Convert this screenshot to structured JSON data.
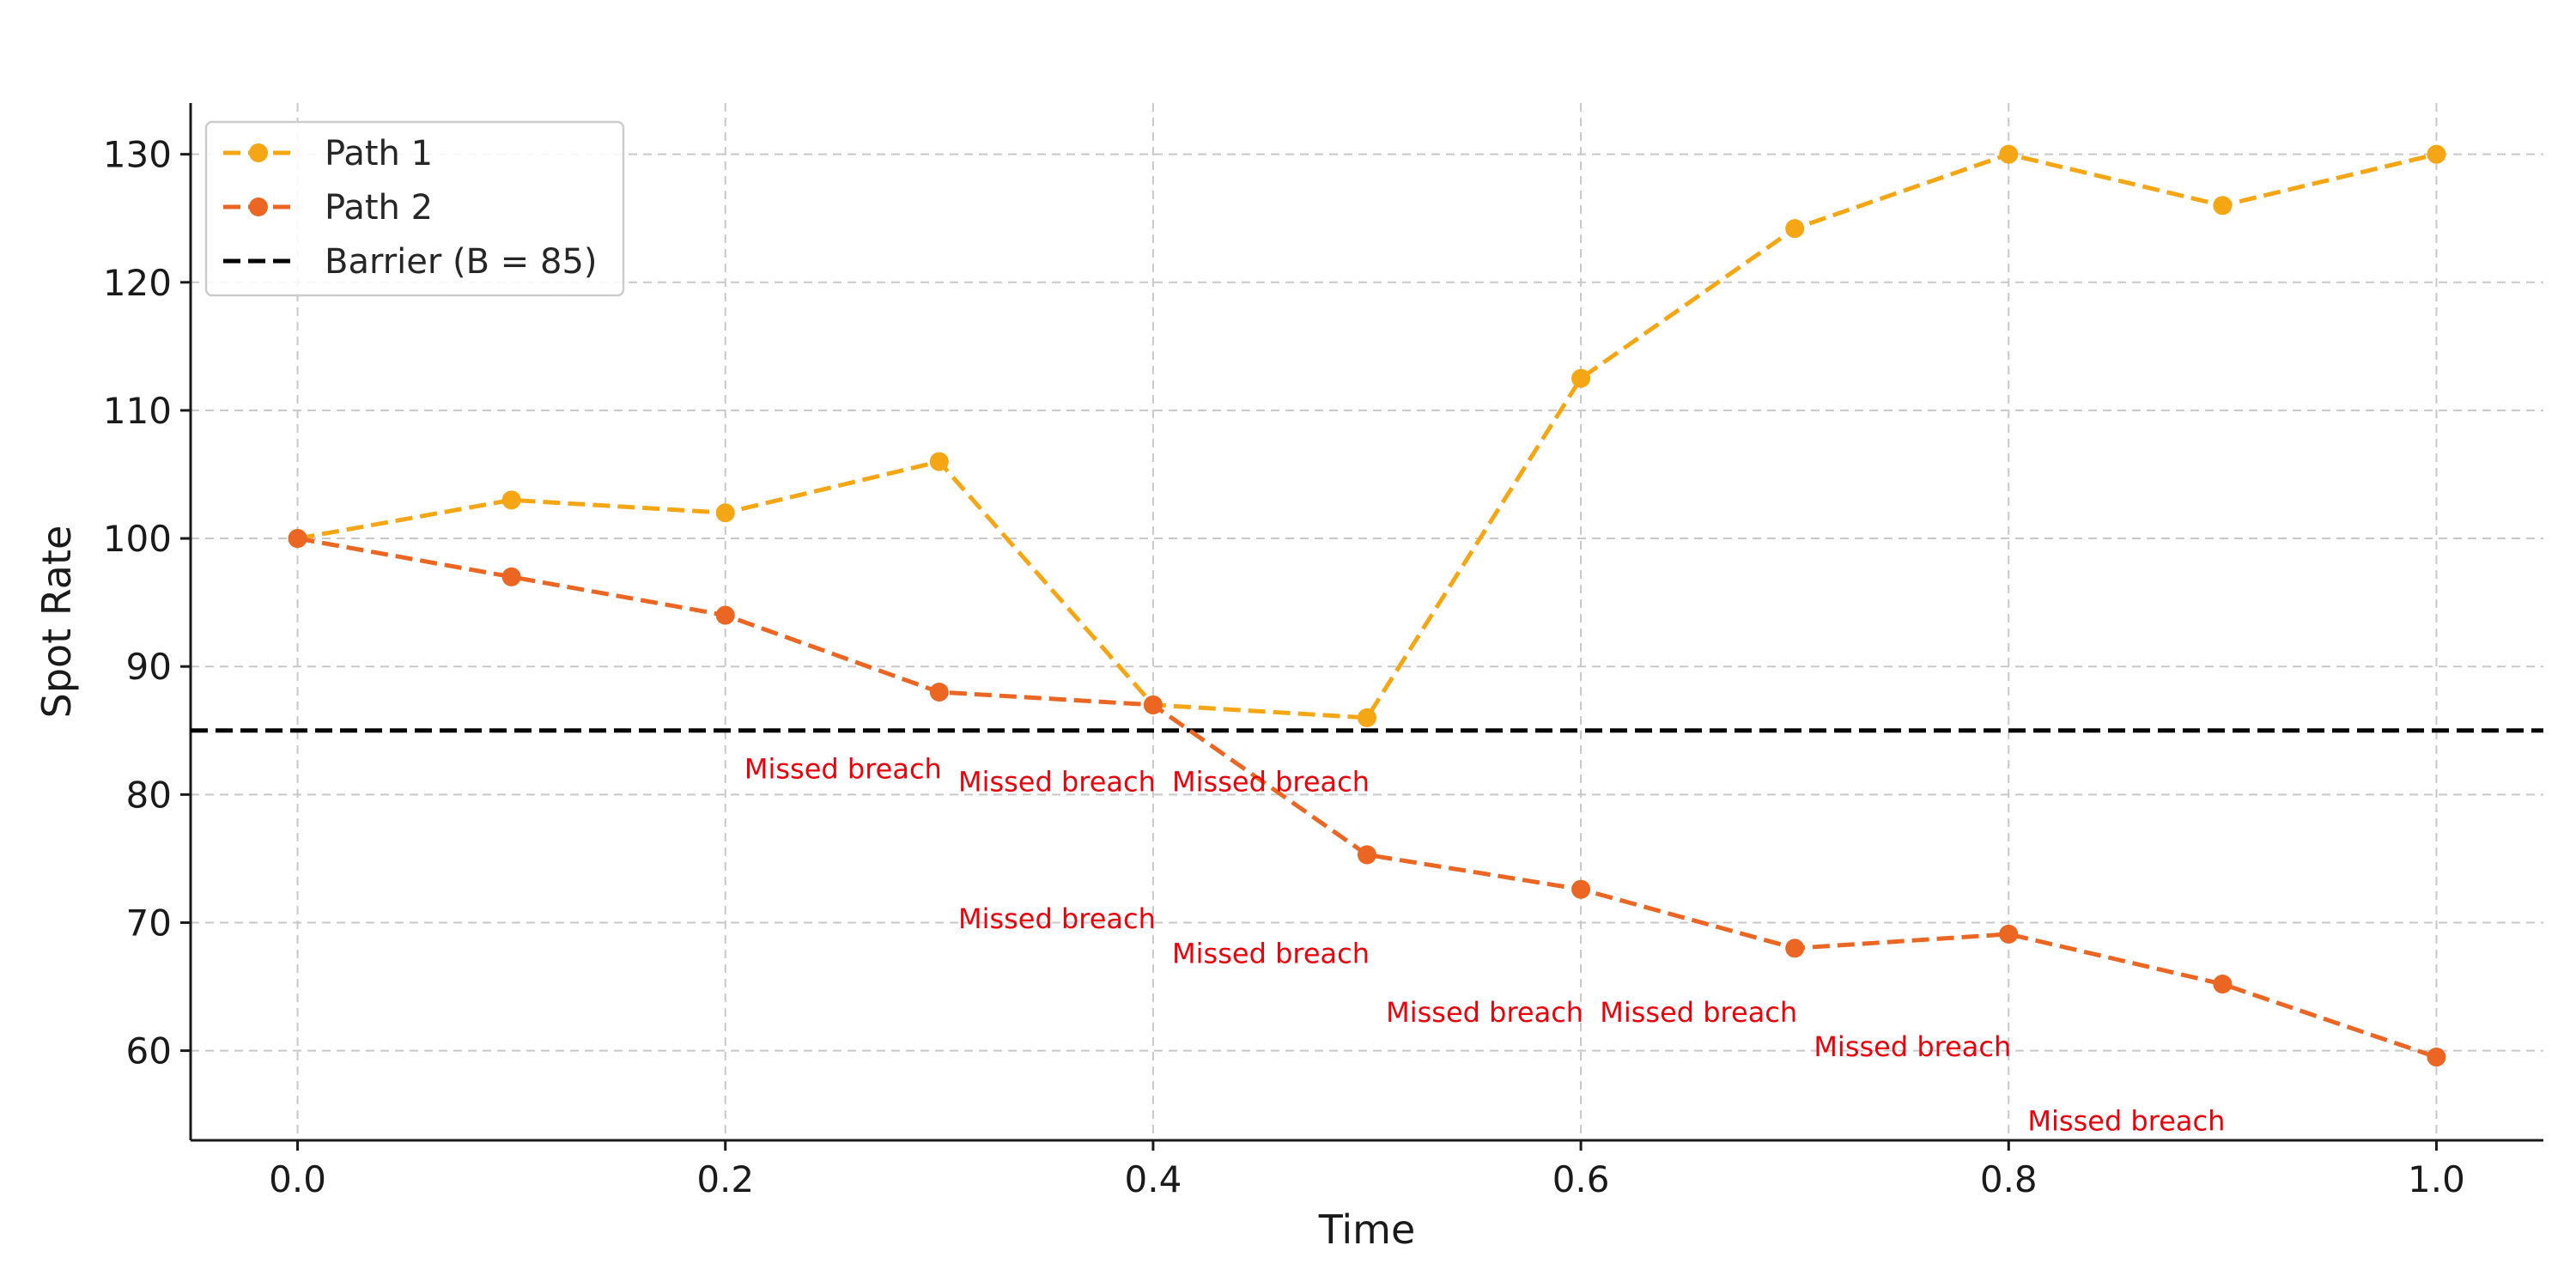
{
  "chart_data": {
    "type": "line",
    "title": "",
    "xlabel": "Time",
    "ylabel": "Spot Rate",
    "xlim": [
      -0.05,
      1.05
    ],
    "ylim": [
      53,
      134
    ],
    "x_ticks": [
      "0.0",
      "0.2",
      "0.4",
      "0.6",
      "0.8",
      "1.0"
    ],
    "x_tick_values": [
      0.0,
      0.2,
      0.4,
      0.6,
      0.8,
      1.0
    ],
    "y_ticks": [
      "60",
      "70",
      "80",
      "90",
      "100",
      "110",
      "120",
      "130"
    ],
    "y_tick_values": [
      60,
      70,
      80,
      90,
      100,
      110,
      120,
      130
    ],
    "grid": true,
    "legend_position": "top-left",
    "x": [
      0.0,
      0.1,
      0.2,
      0.3,
      0.4,
      0.5,
      0.6,
      0.7,
      0.8,
      0.9,
      1.0
    ],
    "series": [
      {
        "name": "Path 1",
        "color": "#F5A614",
        "style": "dashed",
        "marker": "circle",
        "values": [
          100,
          103,
          102,
          106,
          87,
          86,
          112.5,
          124.2,
          130,
          126,
          130
        ]
      },
      {
        "name": "Path 2",
        "color": "#EB6523",
        "style": "dashed",
        "marker": "circle",
        "values": [
          100,
          97,
          94,
          88,
          87,
          75.3,
          72.6,
          68,
          69.1,
          65.2,
          59.5
        ]
      }
    ],
    "reference_line": {
      "name": "Barrier (B = 85)",
      "value": 85,
      "color": "#000000",
      "style": "dashed"
    },
    "annotations": {
      "color": "#E8000B",
      "items": [
        {
          "text": "Missed breach",
          "x": 0.3,
          "y": 82
        },
        {
          "text": "Missed breach",
          "x": 0.4,
          "y": 81
        },
        {
          "text": "Missed breach",
          "x": 0.5,
          "y": 81
        },
        {
          "text": "Missed breach",
          "x": 0.4,
          "y": 70.3
        },
        {
          "text": "Missed breach",
          "x": 0.5,
          "y": 67.6
        },
        {
          "text": "Missed breach",
          "x": 0.6,
          "y": 63
        },
        {
          "text": "Missed breach",
          "x": 0.7,
          "y": 63
        },
        {
          "text": "Missed breach",
          "x": 0.8,
          "y": 60.3
        },
        {
          "text": "Missed breach",
          "x": 0.9,
          "y": 54.5
        }
      ]
    }
  }
}
